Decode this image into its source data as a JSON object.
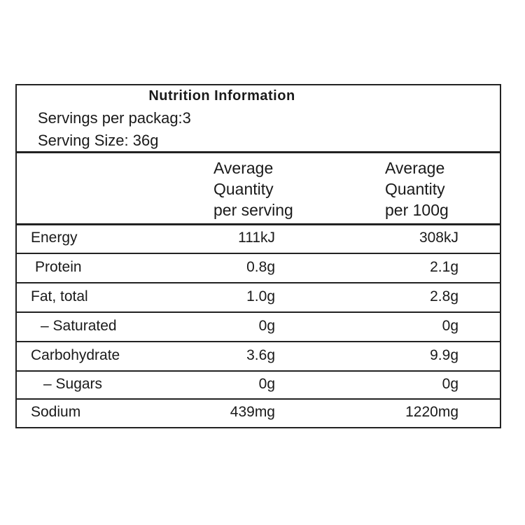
{
  "header": {
    "title": "Nutrition  Information",
    "servings": "Servings per packag:3",
    "serving_size": "Serving Size: 36g"
  },
  "table": {
    "columns": [
      {
        "lines": [
          "Average",
          "Quantity",
          "per serving"
        ]
      },
      {
        "lines": [
          "Average",
          "Quantity",
          "per 100g"
        ]
      }
    ],
    "rows": [
      [
        "Energy",
        "111kJ",
        "308kJ"
      ],
      [
        "Protein",
        "0.8g",
        "2.1g"
      ],
      [
        "Fat,  total",
        "1.0g",
        "2.8g"
      ],
      [
        "– Saturated",
        "0g",
        "0g"
      ],
      [
        "Carbohydrate",
        "3.6g",
        "9.9g"
      ],
      [
        "– Sugars",
        "0g",
        "0g"
      ],
      [
        "Sodium",
        "439mg",
        "1220mg"
      ]
    ]
  }
}
